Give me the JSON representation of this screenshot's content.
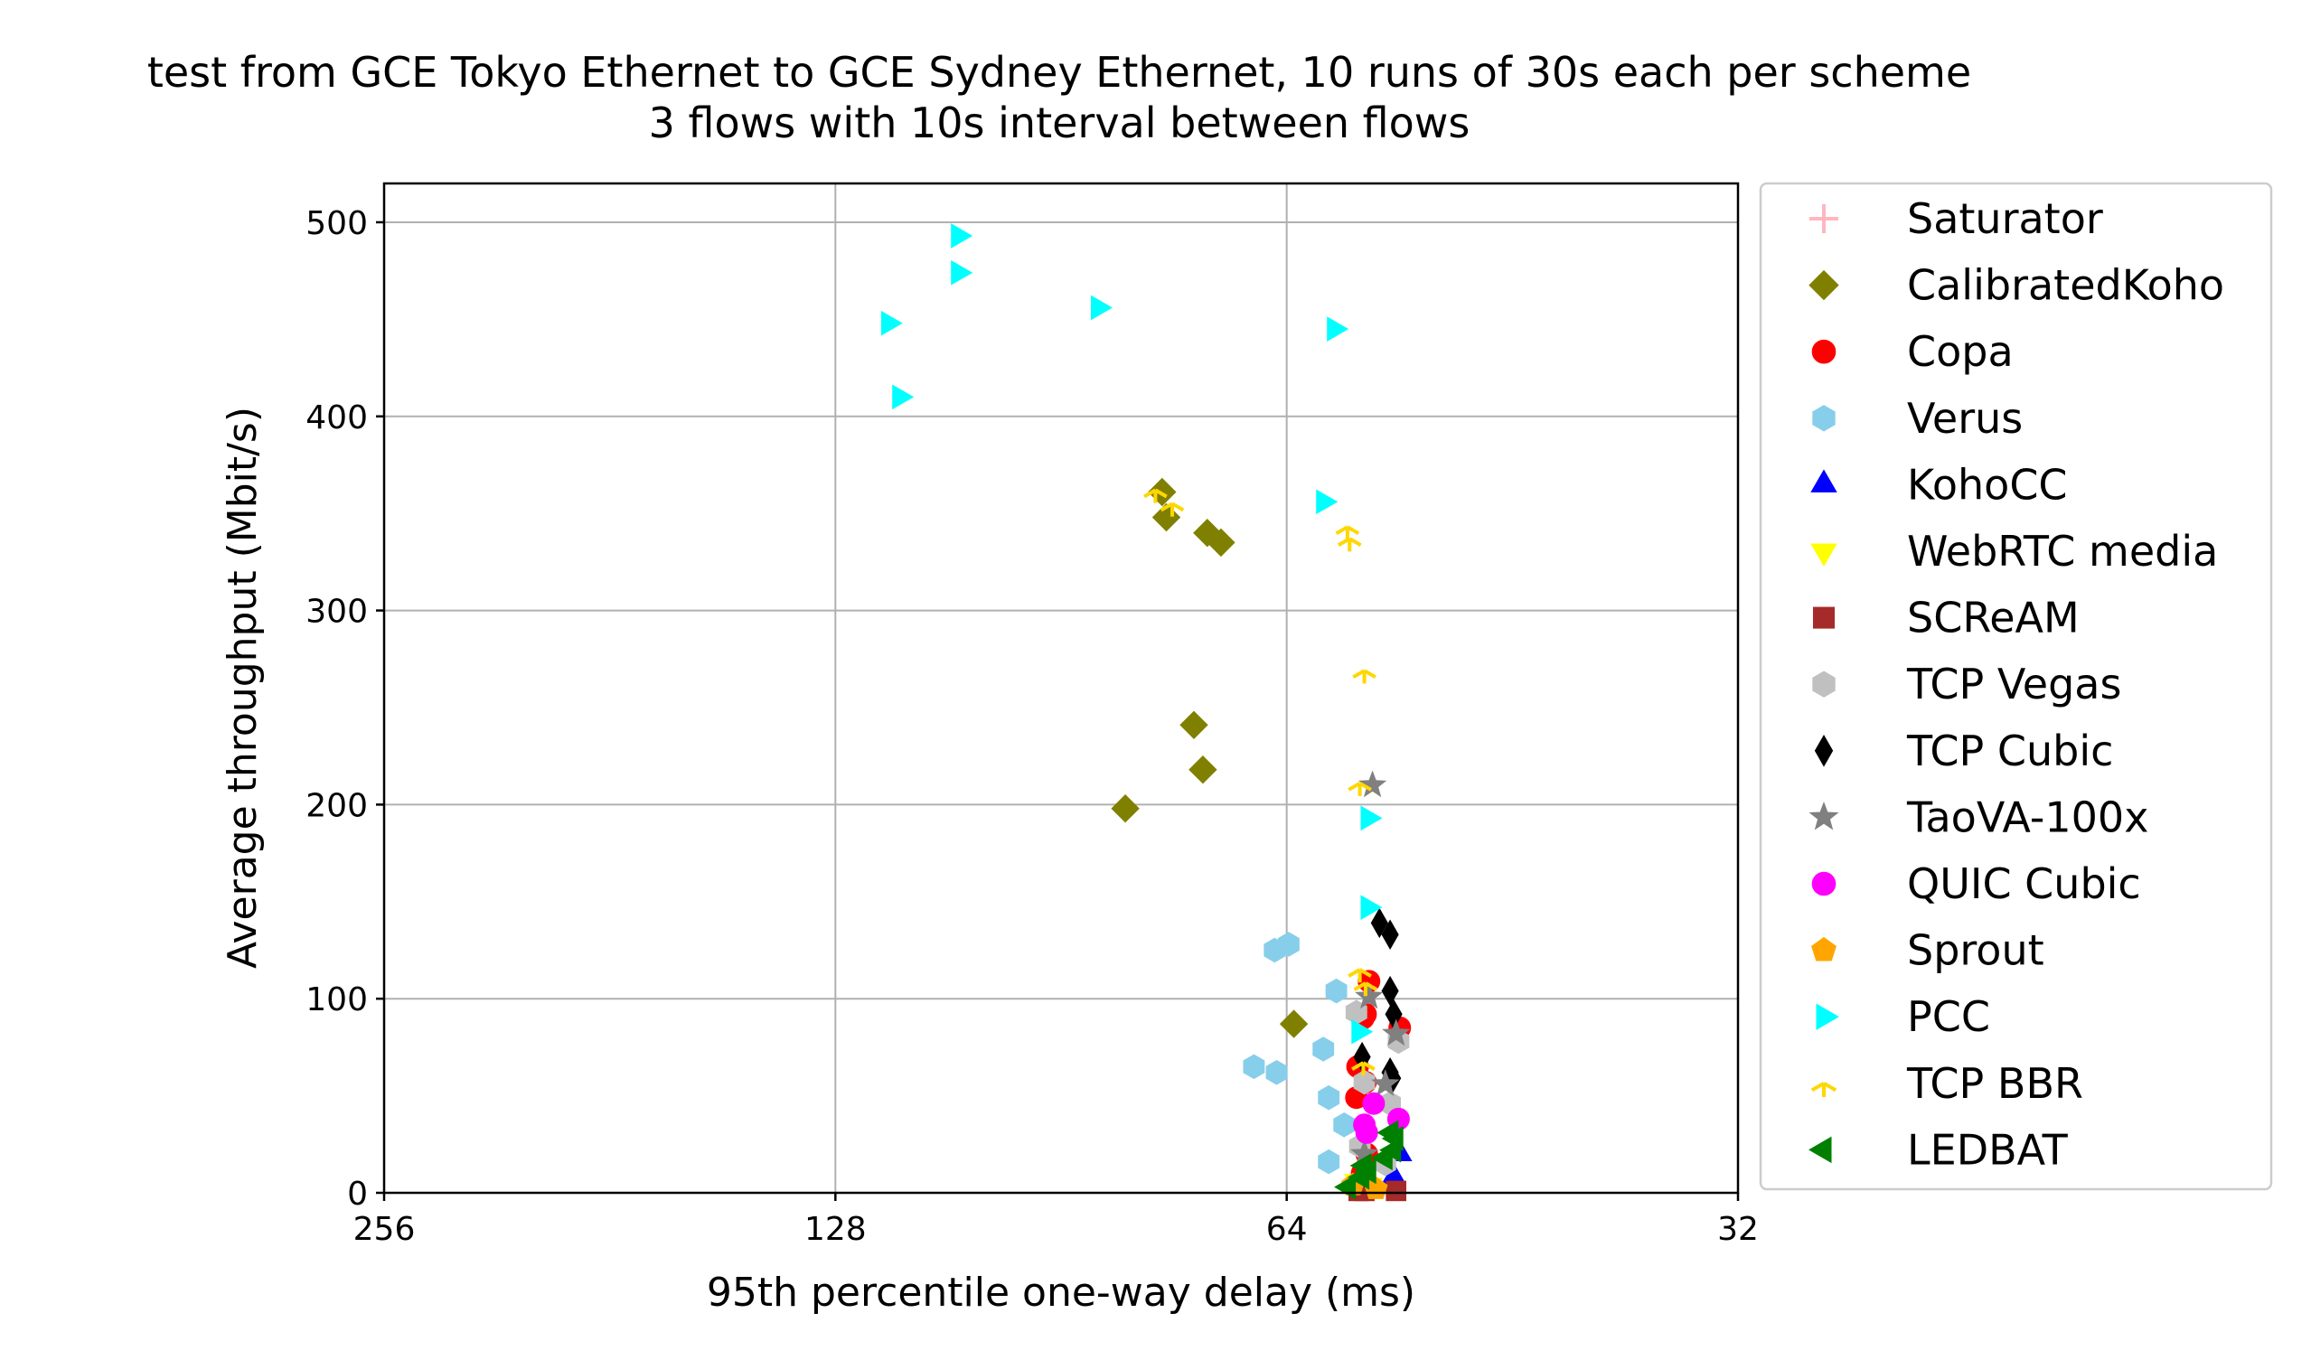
{
  "chart_data": {
    "type": "scatter",
    "title": "test from GCE Tokyo Ethernet to GCE Sydney Ethernet, 10 runs of 30s each per scheme",
    "subtitle": "3 flows with 10s interval between flows",
    "xlabel": "95th percentile one-way delay (ms)",
    "ylabel": "Average throughput (Mbit/s)",
    "xscale": "log2",
    "xinverted": true,
    "xlim": [
      256,
      32
    ],
    "ylim": [
      0,
      520
    ],
    "xticks": [
      "256",
      "128",
      "64",
      "32"
    ],
    "xtick_values": [
      256,
      128,
      64,
      32
    ],
    "yticks": [
      "0",
      "100",
      "200",
      "300",
      "400",
      "500"
    ],
    "ytick_values": [
      0,
      100,
      200,
      300,
      400,
      500
    ],
    "grid": true,
    "legend_position": "outside-right",
    "series": [
      {
        "name": "Saturator",
        "color": "#ffb6c1",
        "marker": "plus",
        "points": []
      },
      {
        "name": "CalibratedKoho",
        "color": "#808000",
        "marker": "diamond",
        "points": [
          [
            77.5,
            361
          ],
          [
            77,
            348
          ],
          [
            72.3,
            340
          ],
          [
            70.8,
            335
          ],
          [
            73.8,
            241
          ],
          [
            72.8,
            218
          ],
          [
            82,
            198
          ],
          [
            63.3,
            87
          ]
        ]
      },
      {
        "name": "Copa",
        "color": "#ff0000",
        "marker": "circle",
        "points": [
          [
            56.4,
            109
          ],
          [
            56.7,
            92
          ],
          [
            56.9,
            90
          ],
          [
            57.4,
            65
          ],
          [
            56.7,
            57
          ],
          [
            57.5,
            49
          ],
          [
            56.6,
            20
          ],
          [
            53.8,
            85
          ],
          [
            57,
            10
          ]
        ]
      },
      {
        "name": "Verus",
        "color": "#87ceeb",
        "marker": "hexagon",
        "points": [
          [
            65.2,
            125
          ],
          [
            63.8,
            128
          ],
          [
            59.3,
            104
          ],
          [
            67.3,
            65
          ],
          [
            65,
            62
          ],
          [
            60.5,
            74
          ],
          [
            60,
            49
          ],
          [
            58.6,
            35
          ],
          [
            60,
            16
          ]
        ]
      },
      {
        "name": "KohoCC",
        "color": "#0000ff",
        "marker": "triangle-up",
        "points": [
          [
            53.8,
            20
          ],
          [
            54.3,
            8
          ],
          [
            57,
            5
          ]
        ]
      },
      {
        "name": "WebRTC media",
        "color": "#ffff00",
        "marker": "triangle-down",
        "points": [
          [
            57.5,
            6
          ],
          [
            56.3,
            4
          ]
        ]
      },
      {
        "name": "SCReAM",
        "color": "#a52a2a",
        "marker": "square",
        "points": [
          [
            56.8,
            1
          ],
          [
            54.1,
            1
          ],
          [
            57.3,
            1
          ]
        ]
      },
      {
        "name": "TCP Vegas",
        "color": "#c0c0c0",
        "marker": "hexagon",
        "points": [
          [
            57.5,
            93
          ],
          [
            53.9,
            78
          ],
          [
            56.8,
            57
          ],
          [
            54.6,
            46
          ],
          [
            57.2,
            24
          ],
          [
            55,
            15
          ]
        ]
      },
      {
        "name": "TCP Cubic",
        "color": "#000000",
        "marker": "thin-diamond",
        "points": [
          [
            55.5,
            139
          ],
          [
            54.6,
            133
          ],
          [
            54.6,
            104
          ],
          [
            54.3,
            92
          ],
          [
            57,
            70
          ],
          [
            54.6,
            62
          ],
          [
            54.4,
            59
          ]
        ]
      },
      {
        "name": "TaoVA-100x",
        "color": "#808080",
        "marker": "star",
        "points": [
          [
            56.1,
            210
          ],
          [
            56.4,
            101
          ],
          [
            54.1,
            82
          ],
          [
            55,
            56
          ],
          [
            56.8,
            20
          ]
        ]
      },
      {
        "name": "QUIC Cubic",
        "color": "#ff00ff",
        "marker": "circle",
        "points": [
          [
            56.8,
            35
          ],
          [
            53.9,
            38
          ],
          [
            56,
            46
          ],
          [
            56.6,
            31
          ]
        ]
      },
      {
        "name": "Sprout",
        "color": "#ffa500",
        "marker": "pentagon",
        "points": [
          [
            57.8,
            4
          ],
          [
            55.8,
            2
          ]
        ]
      },
      {
        "name": "PCC",
        "color": "#00ffff",
        "marker": "triangle-right",
        "points": [
          [
            106,
            493
          ],
          [
            106,
            474
          ],
          [
            118,
            448
          ],
          [
            116,
            410
          ],
          [
            85.5,
            456
          ],
          [
            59.5,
            445
          ],
          [
            60.5,
            356
          ],
          [
            56.5,
            193
          ],
          [
            56.5,
            147
          ],
          [
            57.3,
            83
          ]
        ]
      },
      {
        "name": "TCP BBR",
        "color": "#ffd700",
        "marker": "tri-down",
        "points": [
          [
            78.3,
            362
          ],
          [
            76.3,
            355
          ],
          [
            58.3,
            343
          ],
          [
            58.1,
            337
          ],
          [
            56.8,
            269
          ],
          [
            57.2,
            211
          ],
          [
            57.2,
            115
          ],
          [
            56.7,
            108
          ],
          [
            56.9,
            67
          ]
        ]
      },
      {
        "name": "LEDBAT",
        "color": "#008000",
        "marker": "triangle-left",
        "points": [
          [
            54.1,
            28
          ],
          [
            54.3,
            22
          ],
          [
            55,
            18
          ],
          [
            56.8,
            14
          ],
          [
            57,
            8
          ],
          [
            58.2,
            3
          ],
          [
            56.4,
            11
          ],
          [
            54.5,
            31
          ]
        ]
      }
    ]
  }
}
